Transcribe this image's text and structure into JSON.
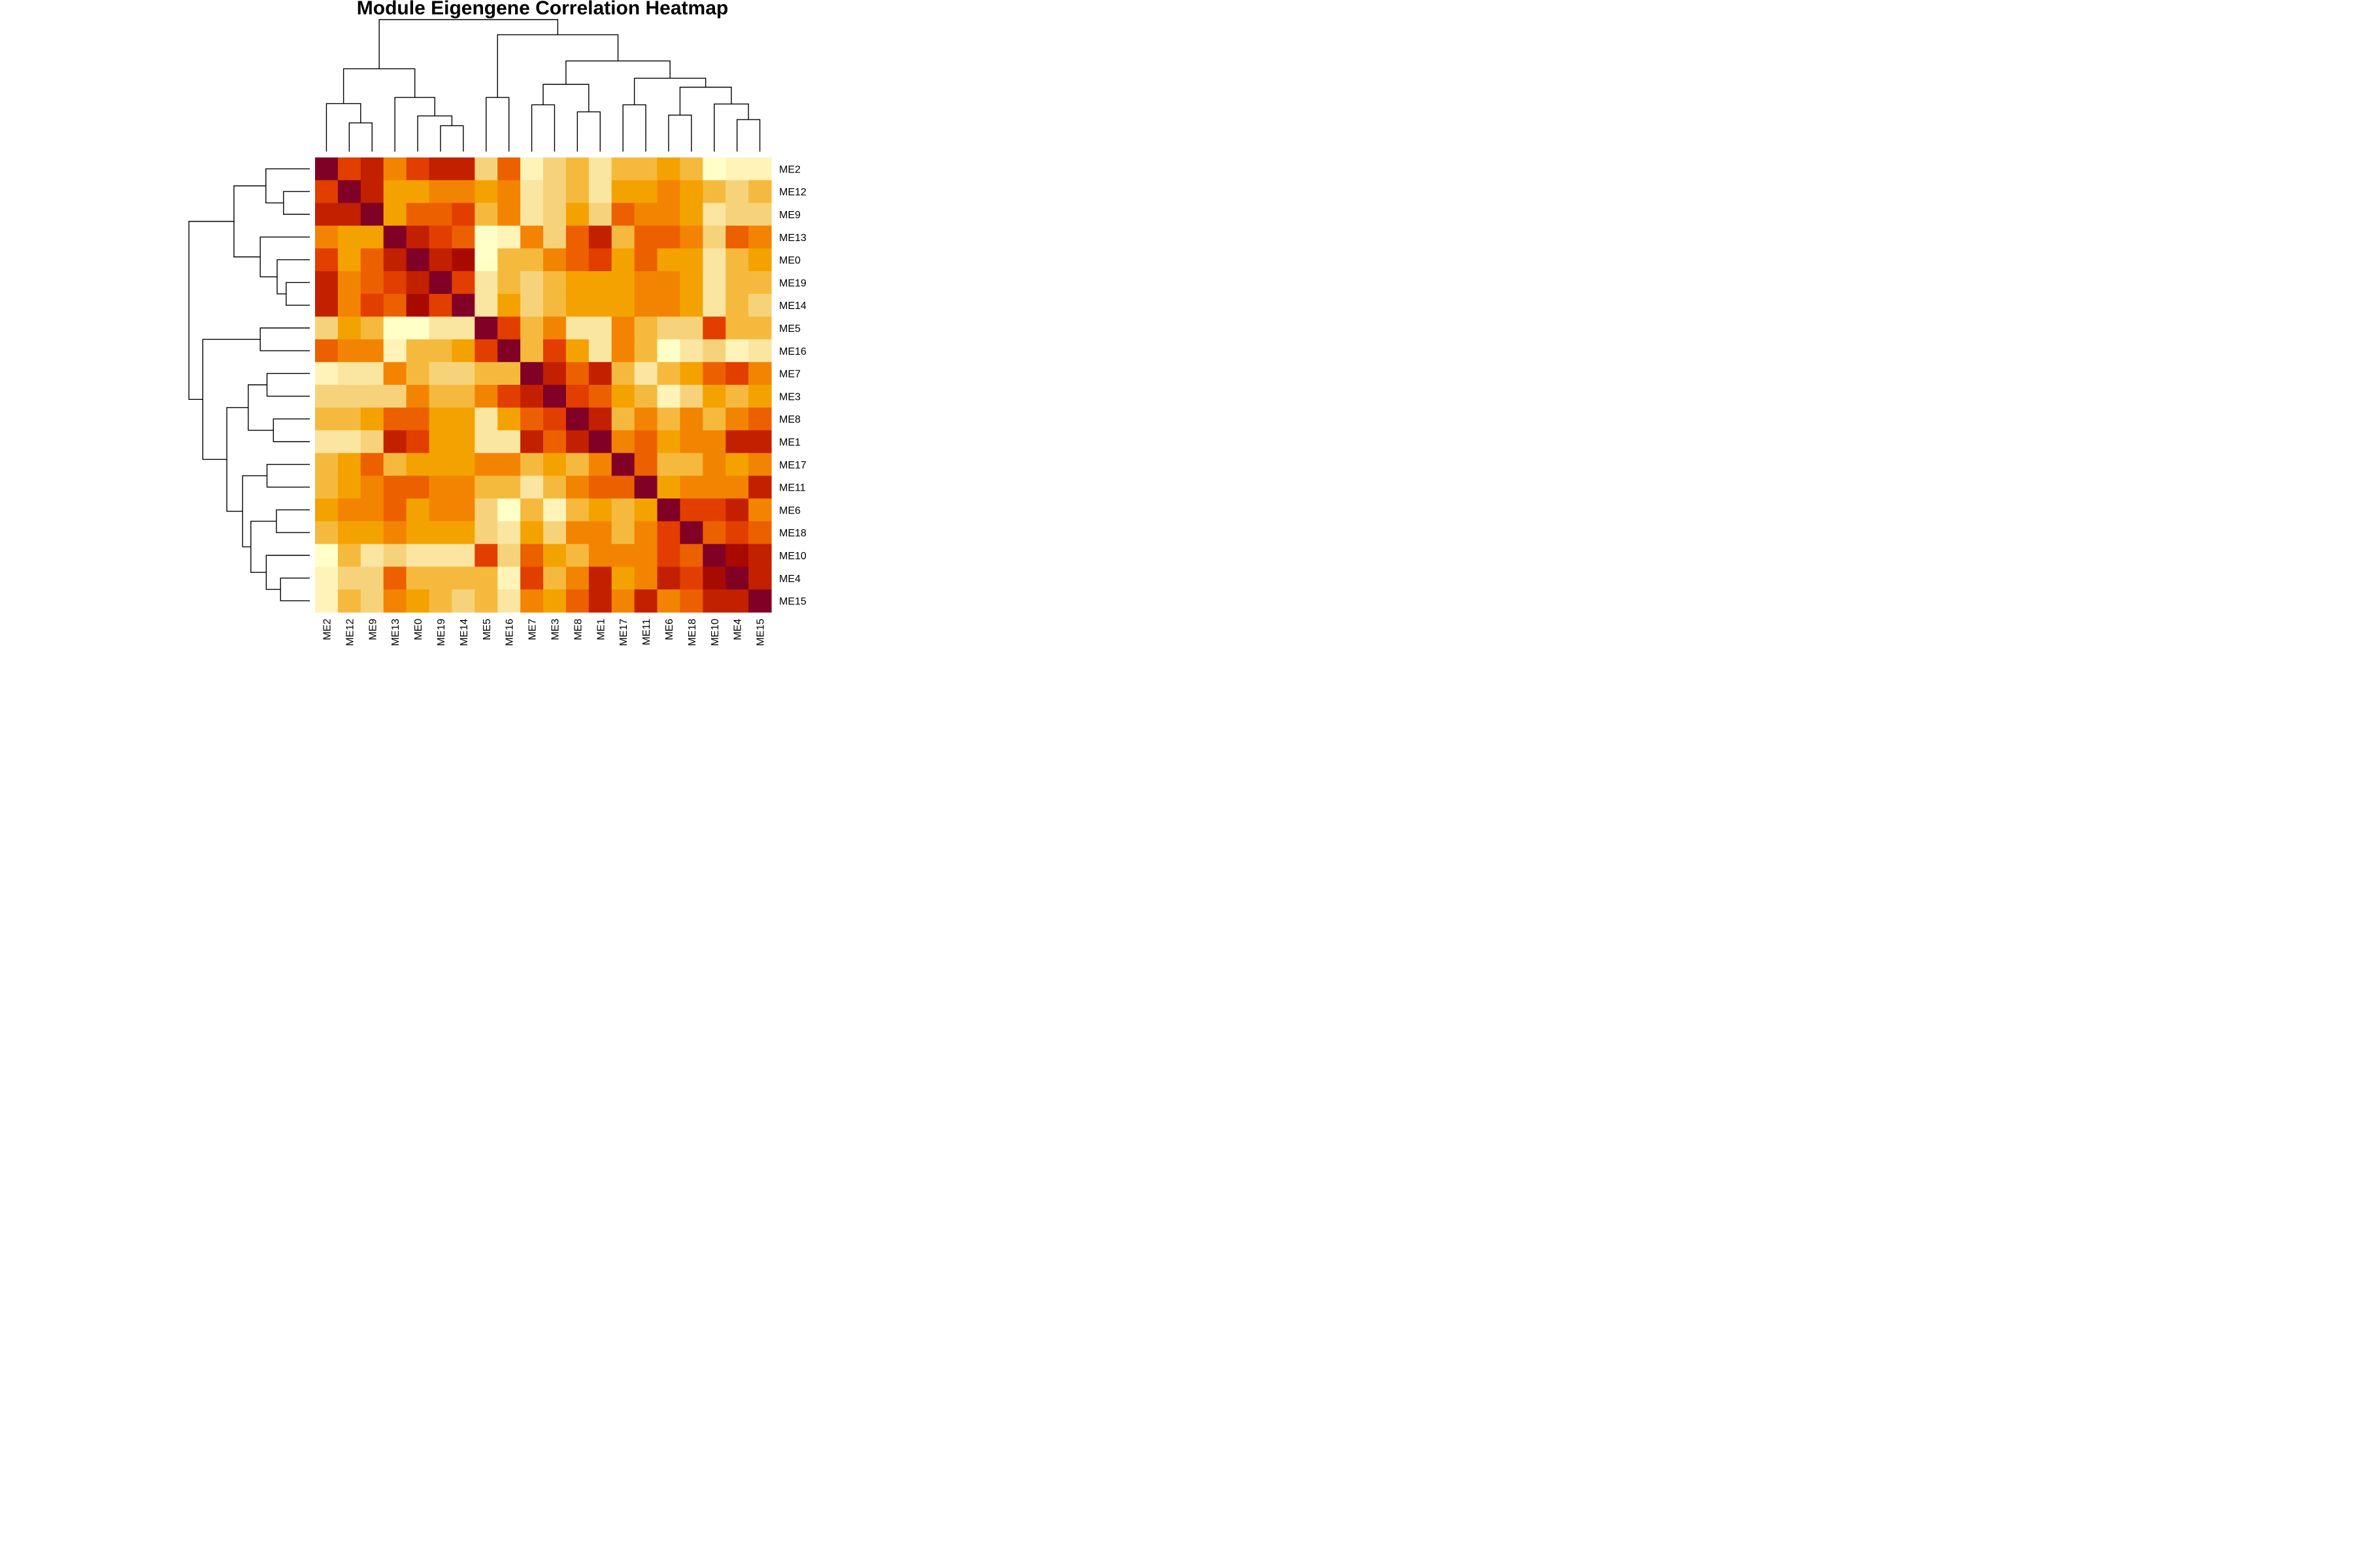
{
  "chart_data": {
    "type": "heatmap",
    "title": "Module Eigengene Correlation Heatmap",
    "row_labels": [
      "ME2",
      "ME12",
      "ME9",
      "ME13",
      "ME0",
      "ME19",
      "ME14",
      "ME5",
      "ME16",
      "ME7",
      "ME3",
      "ME8",
      "ME1",
      "ME17",
      "ME11",
      "ME6",
      "ME18",
      "ME10",
      "ME4",
      "ME15"
    ],
    "col_labels": [
      "ME2",
      "ME12",
      "ME9",
      "ME13",
      "ME0",
      "ME19",
      "ME14",
      "ME5",
      "ME16",
      "ME7",
      "ME3",
      "ME8",
      "ME1",
      "ME17",
      "ME11",
      "ME6",
      "ME18",
      "ME10",
      "ME4",
      "ME15"
    ],
    "color_scale": [
      "#FFFFC8",
      "#FFF3B8",
      "#FAE5A1",
      "#F6D37B",
      "#F5BA3D",
      "#F4A200",
      "#F38402",
      "#EC6000",
      "#E23E00",
      "#C32000",
      "#A80A00",
      "#800026"
    ],
    "levels": [
      [
        11,
        8,
        9,
        6,
        8,
        9,
        9,
        3,
        7,
        1,
        3,
        4,
        2,
        4,
        4,
        5,
        4,
        0,
        1,
        1
      ],
      [
        8,
        11,
        9,
        5,
        5,
        6,
        6,
        5,
        6,
        2,
        3,
        4,
        2,
        5,
        5,
        6,
        5,
        4,
        3,
        4
      ],
      [
        9,
        9,
        11,
        5,
        7,
        7,
        8,
        4,
        6,
        2,
        3,
        5,
        3,
        7,
        6,
        6,
        5,
        2,
        3,
        3
      ],
      [
        6,
        5,
        5,
        11,
        9,
        8,
        7,
        0,
        1,
        6,
        3,
        7,
        9,
        4,
        7,
        7,
        6,
        3,
        7,
        6
      ],
      [
        8,
        5,
        7,
        9,
        11,
        9,
        10,
        0,
        4,
        4,
        6,
        7,
        8,
        5,
        7,
        5,
        5,
        2,
        4,
        5
      ],
      [
        9,
        6,
        7,
        8,
        9,
        11,
        8,
        2,
        4,
        3,
        4,
        5,
        5,
        5,
        6,
        6,
        5,
        2,
        4,
        4
      ],
      [
        9,
        6,
        8,
        7,
        10,
        8,
        11,
        2,
        5,
        3,
        4,
        5,
        5,
        5,
        6,
        6,
        5,
        2,
        4,
        3
      ],
      [
        3,
        5,
        4,
        0,
        0,
        2,
        2,
        11,
        8,
        4,
        6,
        2,
        2,
        6,
        4,
        3,
        3,
        8,
        4,
        4
      ],
      [
        7,
        6,
        6,
        1,
        4,
        4,
        5,
        8,
        11,
        4,
        8,
        5,
        2,
        6,
        4,
        0,
        2,
        3,
        1,
        2
      ],
      [
        1,
        2,
        2,
        6,
        4,
        3,
        3,
        4,
        4,
        11,
        9,
        7,
        9,
        4,
        2,
        4,
        5,
        7,
        8,
        6
      ],
      [
        3,
        3,
        3,
        3,
        6,
        4,
        4,
        6,
        8,
        9,
        11,
        8,
        7,
        5,
        4,
        1,
        3,
        5,
        4,
        5
      ],
      [
        4,
        4,
        5,
        7,
        7,
        5,
        5,
        2,
        5,
        7,
        8,
        11,
        9,
        4,
        6,
        4,
        6,
        4,
        6,
        7
      ],
      [
        2,
        2,
        3,
        9,
        8,
        5,
        5,
        2,
        2,
        9,
        7,
        9,
        11,
        6,
        7,
        5,
        6,
        6,
        9,
        9
      ],
      [
        4,
        5,
        7,
        4,
        5,
        5,
        5,
        6,
        6,
        4,
        5,
        4,
        6,
        11,
        7,
        4,
        4,
        6,
        5,
        6
      ],
      [
        4,
        5,
        6,
        7,
        7,
        6,
        6,
        4,
        4,
        2,
        4,
        6,
        7,
        7,
        11,
        5,
        6,
        6,
        6,
        9
      ],
      [
        5,
        6,
        6,
        7,
        5,
        6,
        6,
        3,
        0,
        4,
        1,
        4,
        5,
        4,
        5,
        11,
        8,
        8,
        9,
        6
      ],
      [
        4,
        5,
        5,
        6,
        5,
        5,
        5,
        3,
        2,
        5,
        3,
        6,
        6,
        4,
        6,
        8,
        11,
        7,
        8,
        7
      ],
      [
        0,
        4,
        2,
        3,
        2,
        2,
        2,
        8,
        3,
        7,
        5,
        4,
        6,
        6,
        6,
        8,
        7,
        11,
        10,
        9
      ],
      [
        1,
        3,
        3,
        7,
        4,
        4,
        4,
        4,
        1,
        8,
        4,
        6,
        9,
        5,
        6,
        9,
        8,
        10,
        11,
        9
      ],
      [
        1,
        4,
        3,
        6,
        5,
        4,
        3,
        4,
        2,
        6,
        5,
        7,
        9,
        6,
        9,
        6,
        7,
        9,
        9,
        11
      ]
    ],
    "col_dendrogram": {
      "labels_order": [
        "ME2",
        "ME12",
        "ME9",
        "ME13",
        "ME0",
        "ME19",
        "ME14",
        "ME5",
        "ME16",
        "ME7",
        "ME3",
        "ME8",
        "ME1",
        "ME17",
        "ME11",
        "ME6",
        "ME18",
        "ME10",
        "ME4",
        "ME15"
      ],
      "merges": [
        {
          "a": 1,
          "b": 2,
          "h": 0.7
        },
        {
          "a": 0,
          "b": "m0",
          "h": 1.17
        },
        {
          "a": 5,
          "b": 6,
          "h": 0.63
        },
        {
          "a": 4,
          "b": "m2",
          "h": 0.87
        },
        {
          "a": 3,
          "b": "m3",
          "h": 1.32
        },
        {
          "a": "m1",
          "b": "m4",
          "h": 2.02
        },
        {
          "a": 7,
          "b": 8,
          "h": 1.32
        },
        {
          "a": 9,
          "b": 10,
          "h": 1.14
        },
        {
          "a": 11,
          "b": 12,
          "h": 0.97
        },
        {
          "a": "m7",
          "b": "m8",
          "h": 1.64
        },
        {
          "a": 13,
          "b": 14,
          "h": 1.14
        },
        {
          "a": 15,
          "b": 16,
          "h": 0.89
        },
        {
          "a": 18,
          "b": 19,
          "h": 0.78
        },
        {
          "a": 17,
          "b": "m12",
          "h": 1.16
        },
        {
          "a": "m11",
          "b": "m13",
          "h": 1.57
        },
        {
          "a": "m10",
          "b": "m14",
          "h": 1.79
        },
        {
          "a": "m9",
          "b": "m15",
          "h": 2.21
        },
        {
          "a": "m6",
          "b": "m16",
          "h": 2.85
        },
        {
          "a": "m5",
          "b": "m17",
          "h": 3.22
        }
      ],
      "max_height": 3.22
    }
  }
}
